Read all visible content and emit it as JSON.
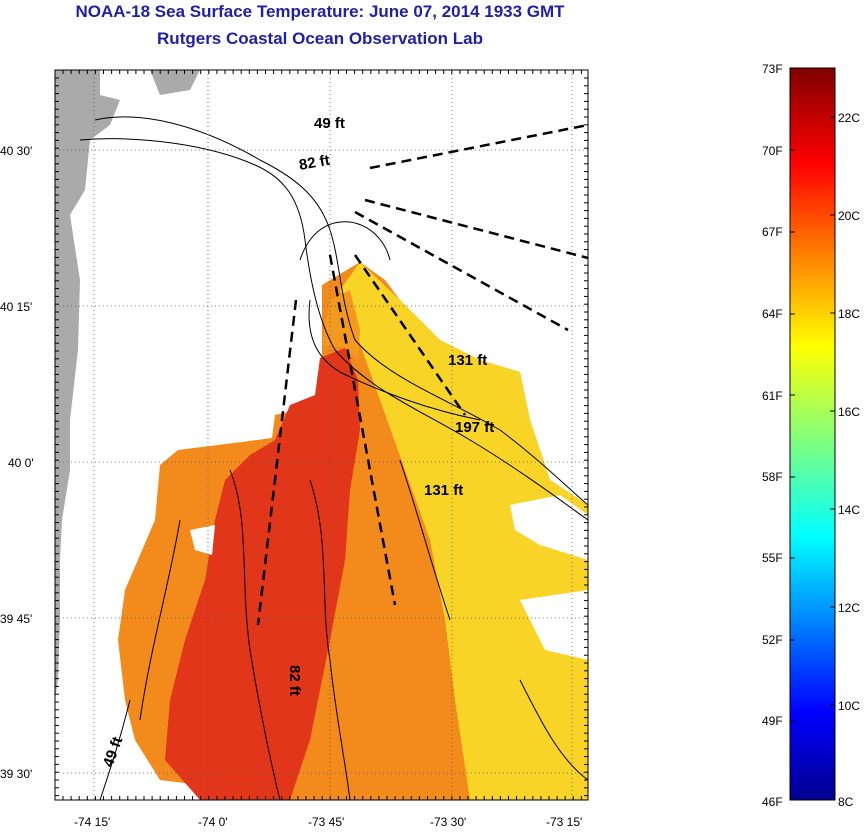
{
  "title": {
    "line1": "NOAA-18 Sea Surface Temperature:  June 07, 2014 1933 GMT",
    "line2": "Rutgers Coastal Ocean Observation Lab"
  },
  "axes": {
    "lat_labels": [
      "40 30'",
      "40 15'",
      "40 0'",
      "39 45'",
      "39 30'"
    ],
    "lon_labels": [
      "-74 15'",
      "-74 0'",
      "-73 45'",
      "-73 30'",
      "-73 15'"
    ]
  },
  "contour_labels": [
    "49 ft",
    "82 ft",
    "131 ft",
    "197 ft",
    "131 ft",
    "82 ft",
    "49 ft"
  ],
  "colorbar": {
    "fahrenheit": [
      "73F",
      "70F",
      "67F",
      "64F",
      "61F",
      "58F",
      "55F",
      "52F",
      "49F",
      "46F"
    ],
    "celsius": [
      "22C",
      "20C",
      "18C",
      "16C",
      "14C",
      "12C",
      "10C",
      "8C"
    ],
    "range_f": [
      46,
      73
    ],
    "range_c": [
      7.8,
      22.8
    ]
  },
  "colors": {
    "title": "#1f1fa8",
    "land": "#aaaaaa",
    "sst_warm": "#e02a10",
    "sst_mid": "#f08018",
    "sst_cool": "#f7d820"
  }
}
